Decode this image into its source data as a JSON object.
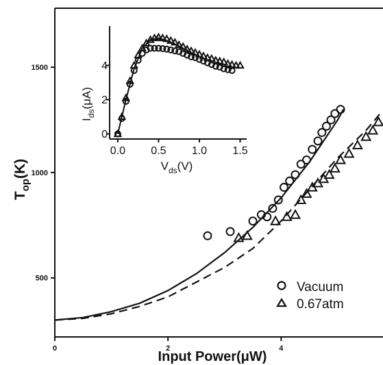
{
  "chart_data": [
    {
      "type": "scatter",
      "role": "main",
      "xlabel": "Input Power(μW)",
      "ylabel_main": "T",
      "ylabel_sub": "op",
      "ylabel_tail": "(K)",
      "xlim": [
        0,
        5.8
      ],
      "ylim": [
        220,
        1780
      ],
      "x_ticks": [
        0,
        2,
        4
      ],
      "x_tick_labels": [
        "0",
        "2",
        "4"
      ],
      "y_ticks": [
        500,
        1000,
        1500
      ],
      "y_tick_labels": [
        "500",
        "1000",
        "1500"
      ],
      "legend_position": "bottom-right",
      "series": [
        {
          "name": "Vacuum",
          "marker": "circle",
          "x": [
            2.7,
            3.1,
            3.5,
            3.65,
            3.75,
            3.85,
            3.95,
            4.05,
            4.15,
            4.25,
            4.35,
            4.45,
            4.55,
            4.65,
            4.72,
            4.8,
            4.88,
            4.95,
            5.05
          ],
          "y": [
            700,
            720,
            770,
            800,
            790,
            830,
            870,
            930,
            960,
            990,
            1040,
            1060,
            1110,
            1150,
            1190,
            1220,
            1250,
            1280,
            1300
          ]
        },
        {
          "name": "0.67atm",
          "marker": "triangle",
          "x": [
            3.25,
            3.4,
            3.9,
            4.1,
            4.25,
            4.35,
            4.45,
            4.55,
            4.65,
            4.75,
            4.85,
            4.95,
            5.05,
            5.2,
            5.35,
            5.5,
            5.62,
            5.72
          ],
          "y": [
            690,
            700,
            770,
            790,
            800,
            870,
            900,
            930,
            950,
            970,
            990,
            1020,
            1060,
            1090,
            1130,
            1170,
            1200,
            1240
          ]
        }
      ],
      "fits": [
        {
          "style": "solid",
          "x": [
            0,
            0.5,
            1.0,
            1.5,
            2.0,
            2.5,
            3.0,
            3.5,
            4.0,
            4.5,
            5.0,
            5.1
          ],
          "y": [
            300,
            312,
            340,
            380,
            440,
            520,
            620,
            740,
            880,
            1050,
            1250,
            1300
          ]
        },
        {
          "style": "dashed",
          "x": [
            0,
            0.5,
            1.0,
            1.5,
            2.0,
            2.5,
            3.0,
            3.5,
            4.0,
            4.5,
            5.0,
            5.5,
            5.75
          ],
          "y": [
            300,
            308,
            330,
            365,
            410,
            480,
            550,
            640,
            770,
            920,
            1070,
            1200,
            1280
          ]
        }
      ]
    },
    {
      "type": "scatter",
      "role": "inset",
      "xlabel_main": "V",
      "xlabel_sub": "ds",
      "xlabel_tail": "(V)",
      "ylabel_main": "I",
      "ylabel_sub": "ds",
      "ylabel_tail": "(μA)",
      "xlim": [
        -0.1,
        1.58
      ],
      "ylim": [
        -0.3,
        6.3
      ],
      "x_ticks": [
        0.0,
        0.5,
        1.0,
        1.5
      ],
      "x_tick_labels": [
        "0.0",
        "0.5",
        "1.0",
        "1.5"
      ],
      "y_ticks": [
        0,
        2,
        4
      ],
      "y_tick_labels": [
        "0",
        "2",
        "4"
      ],
      "series": [
        {
          "name": "Vacuum",
          "marker": "circle",
          "x": [
            0.0,
            0.05,
            0.1,
            0.15,
            0.2,
            0.25,
            0.3,
            0.35,
            0.4,
            0.45,
            0.5,
            0.55,
            0.6,
            0.65,
            0.7,
            0.75,
            0.8,
            0.85,
            0.9,
            0.95,
            1.0,
            1.05,
            1.1,
            1.15,
            1.2,
            1.25,
            1.3,
            1.35,
            1.4
          ],
          "y": [
            0.0,
            0.9,
            1.9,
            2.9,
            3.7,
            4.3,
            4.7,
            4.9,
            5.0,
            5.0,
            5.0,
            4.98,
            4.95,
            4.9,
            4.85,
            4.8,
            4.7,
            4.6,
            4.5,
            4.45,
            4.35,
            4.25,
            4.15,
            4.05,
            3.95,
            3.9,
            3.8,
            3.75,
            3.7
          ]
        },
        {
          "name": "0.67atm",
          "marker": "triangle",
          "x": [
            0.0,
            0.05,
            0.1,
            0.15,
            0.2,
            0.25,
            0.3,
            0.35,
            0.4,
            0.45,
            0.5,
            0.55,
            0.6,
            0.65,
            0.7,
            0.75,
            0.8,
            0.85,
            0.9,
            0.95,
            1.0,
            1.05,
            1.1,
            1.15,
            1.2,
            1.25,
            1.3,
            1.35,
            1.4,
            1.45,
            1.5
          ],
          "y": [
            0.0,
            1.0,
            2.1,
            3.1,
            4.0,
            4.6,
            5.0,
            5.3,
            5.5,
            5.6,
            5.65,
            5.6,
            5.55,
            5.45,
            5.35,
            5.2,
            5.1,
            4.95,
            4.85,
            4.75,
            4.65,
            4.55,
            4.45,
            4.4,
            4.3,
            4.25,
            4.2,
            4.1,
            4.05,
            4.0,
            4.0
          ]
        }
      ],
      "fits": [
        {
          "style": "solid",
          "x": [
            0.0,
            0.1,
            0.2,
            0.3,
            0.4,
            0.5,
            0.6,
            0.7,
            0.8,
            0.9,
            1.0,
            1.1,
            1.2,
            1.3,
            1.4
          ],
          "y": [
            0.0,
            2.0,
            3.8,
            5.0,
            5.5,
            5.6,
            5.45,
            5.25,
            5.0,
            4.75,
            4.5,
            4.3,
            4.1,
            3.95,
            3.8
          ]
        }
      ]
    }
  ]
}
